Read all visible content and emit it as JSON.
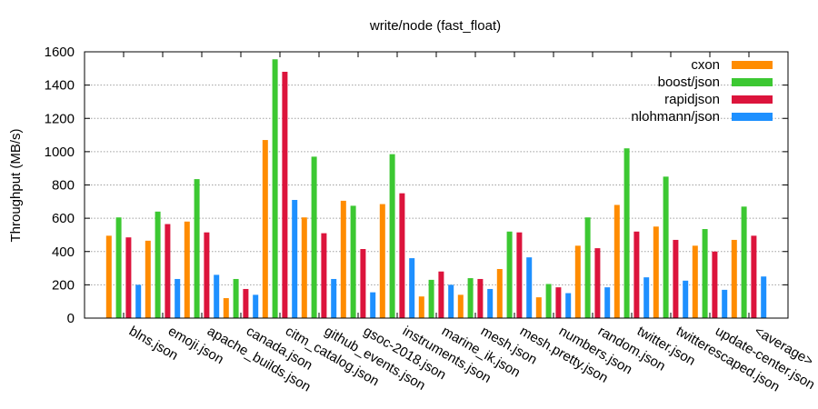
{
  "chart_data": {
    "type": "bar",
    "title": "write/node (fast_float)",
    "xlabel": "",
    "ylabel": "Throughput (MB/s)",
    "ylim": [
      0,
      1600
    ],
    "yticks": [
      0,
      200,
      400,
      600,
      800,
      1000,
      1200,
      1400,
      1600
    ],
    "grid": true,
    "legend_position": "top-right",
    "categories": [
      "blns.json",
      "emoji.json",
      "apache_builds.json",
      "canada.json",
      "citm_catalog.json",
      "github_events.json",
      "gsoc-2018.json",
      "instruments.json",
      "marine_ik.json",
      "mesh.json",
      "mesh.pretty.json",
      "numbers.json",
      "random.json",
      "twitter.json",
      "twitterescaped.json",
      "update-center.json",
      "<average>"
    ],
    "series": [
      {
        "name": "cxon",
        "color": "#ff8c00",
        "values": [
          495,
          465,
          580,
          120,
          1070,
          605,
          705,
          685,
          130,
          140,
          295,
          125,
          435,
          680,
          550,
          435,
          470
        ]
      },
      {
        "name": "boost/json",
        "color": "#3cc832",
        "values": [
          605,
          640,
          835,
          235,
          1555,
          970,
          675,
          985,
          230,
          240,
          520,
          205,
          605,
          1020,
          850,
          535,
          670
        ]
      },
      {
        "name": "rapidjson",
        "color": "#dc143c",
        "values": [
          485,
          565,
          515,
          175,
          1480,
          510,
          415,
          750,
          280,
          235,
          515,
          185,
          420,
          520,
          470,
          400,
          495
        ]
      },
      {
        "name": "nlohmann/json",
        "color": "#1e90ff",
        "values": [
          200,
          235,
          260,
          140,
          710,
          235,
          155,
          360,
          200,
          175,
          365,
          150,
          185,
          245,
          225,
          170,
          250
        ]
      }
    ]
  }
}
